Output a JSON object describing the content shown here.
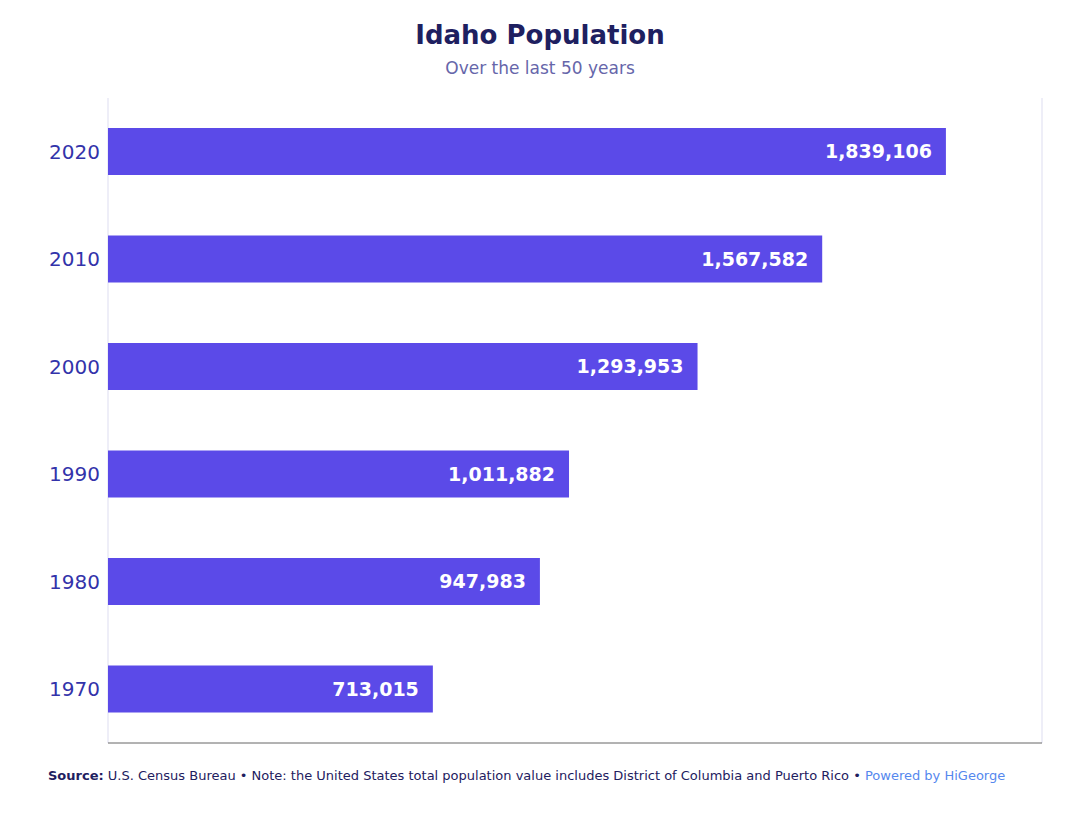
{
  "chart_data": {
    "type": "bar",
    "orientation": "horizontal",
    "title": "Idaho Population",
    "subtitle": "Over the last 50 years",
    "categories": [
      "2020",
      "2010",
      "2000",
      "1990",
      "1980",
      "1970"
    ],
    "values": [
      1839106,
      1567582,
      1293953,
      1011882,
      947983,
      713015
    ],
    "value_labels": [
      "1,839,106",
      "1,567,582",
      "1,293,953",
      "1,011,882",
      "947,983",
      "713,015"
    ],
    "data_labels": true,
    "color": "#5B4AE8",
    "xlim": [
      0,
      2050000
    ],
    "xticks": [
      0,
      200000,
      400000,
      600000,
      800000,
      1000000,
      1200000,
      1400000,
      1600000,
      1800000,
      2000000
    ],
    "grid": true,
    "tick_labels": "y",
    "annotations": [
      "Source:",
      "U.S. Census Bureau • Note: the United States total population value includes District of Columbia and Puerto Rico • ",
      "Powered by HiGeorge"
    ]
  }
}
